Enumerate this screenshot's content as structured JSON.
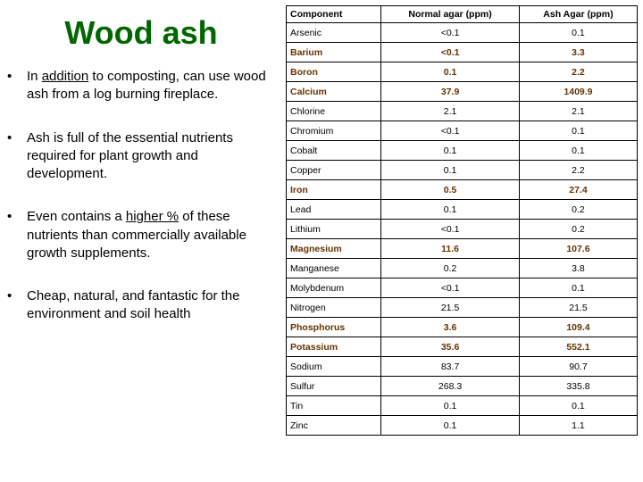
{
  "title": "Wood ash",
  "bullets": [
    {
      "pre": "In ",
      "u": "addition",
      "post": " to composting, can use wood ash from a log burning fireplace."
    },
    {
      "pre": "Ash is full of the essential nutrients required for plant growth and development.",
      "u": "",
      "post": ""
    },
    {
      "pre": "Even contains a ",
      "u": "higher %",
      "post": " of these nutrients than commercially available growth supplements."
    },
    {
      "pre": "Cheap, natural, and fantastic for the environment and soil health",
      "u": "",
      "post": ""
    }
  ],
  "table": {
    "headers": [
      "Component",
      "Normal agar (ppm)",
      "Ash Agar (ppm)"
    ],
    "rows": [
      {
        "name": "Arsenic",
        "normal": "<0.1",
        "ash": "0.1",
        "essential": false
      },
      {
        "name": "Barium",
        "normal": "<0.1",
        "ash": "3.3",
        "essential": true
      },
      {
        "name": "Boron",
        "normal": "0.1",
        "ash": "2.2",
        "essential": true
      },
      {
        "name": "Calcium",
        "normal": "37.9",
        "ash": "1409.9",
        "essential": true
      },
      {
        "name": "Chlorine",
        "normal": "2.1",
        "ash": "2.1",
        "essential": false
      },
      {
        "name": "Chromium",
        "normal": "<0.1",
        "ash": "0.1",
        "essential": false
      },
      {
        "name": "Cobalt",
        "normal": "0.1",
        "ash": "0.1",
        "essential": false
      },
      {
        "name": "Copper",
        "normal": "0.1",
        "ash": "2.2",
        "essential": false
      },
      {
        "name": "Iron",
        "normal": "0.5",
        "ash": "27.4",
        "essential": true
      },
      {
        "name": "Lead",
        "normal": "0.1",
        "ash": "0.2",
        "essential": false
      },
      {
        "name": "Lithium",
        "normal": "<0.1",
        "ash": "0.2",
        "essential": false
      },
      {
        "name": "Magnesium",
        "normal": "11.6",
        "ash": "107.6",
        "essential": true
      },
      {
        "name": "Manganese",
        "normal": "0.2",
        "ash": "3.8",
        "essential": false
      },
      {
        "name": "Molybdenum",
        "normal": "<0.1",
        "ash": "0.1",
        "essential": false
      },
      {
        "name": "Nitrogen",
        "normal": "21.5",
        "ash": "21.5",
        "essential": false
      },
      {
        "name": "Phosphorus",
        "normal": "3.6",
        "ash": "109.4",
        "essential": true
      },
      {
        "name": "Potassium",
        "normal": "35.6",
        "ash": "552.1",
        "essential": true
      },
      {
        "name": "Sodium",
        "normal": "83.7",
        "ash": "90.7",
        "essential": false
      },
      {
        "name": "Sulfur",
        "normal": "268.3",
        "ash": "335.8",
        "essential": false
      },
      {
        "name": "Tin",
        "normal": "0.1",
        "ash": "0.1",
        "essential": false
      },
      {
        "name": "Zinc",
        "normal": "0.1",
        "ash": "1.1",
        "essential": false
      }
    ]
  }
}
